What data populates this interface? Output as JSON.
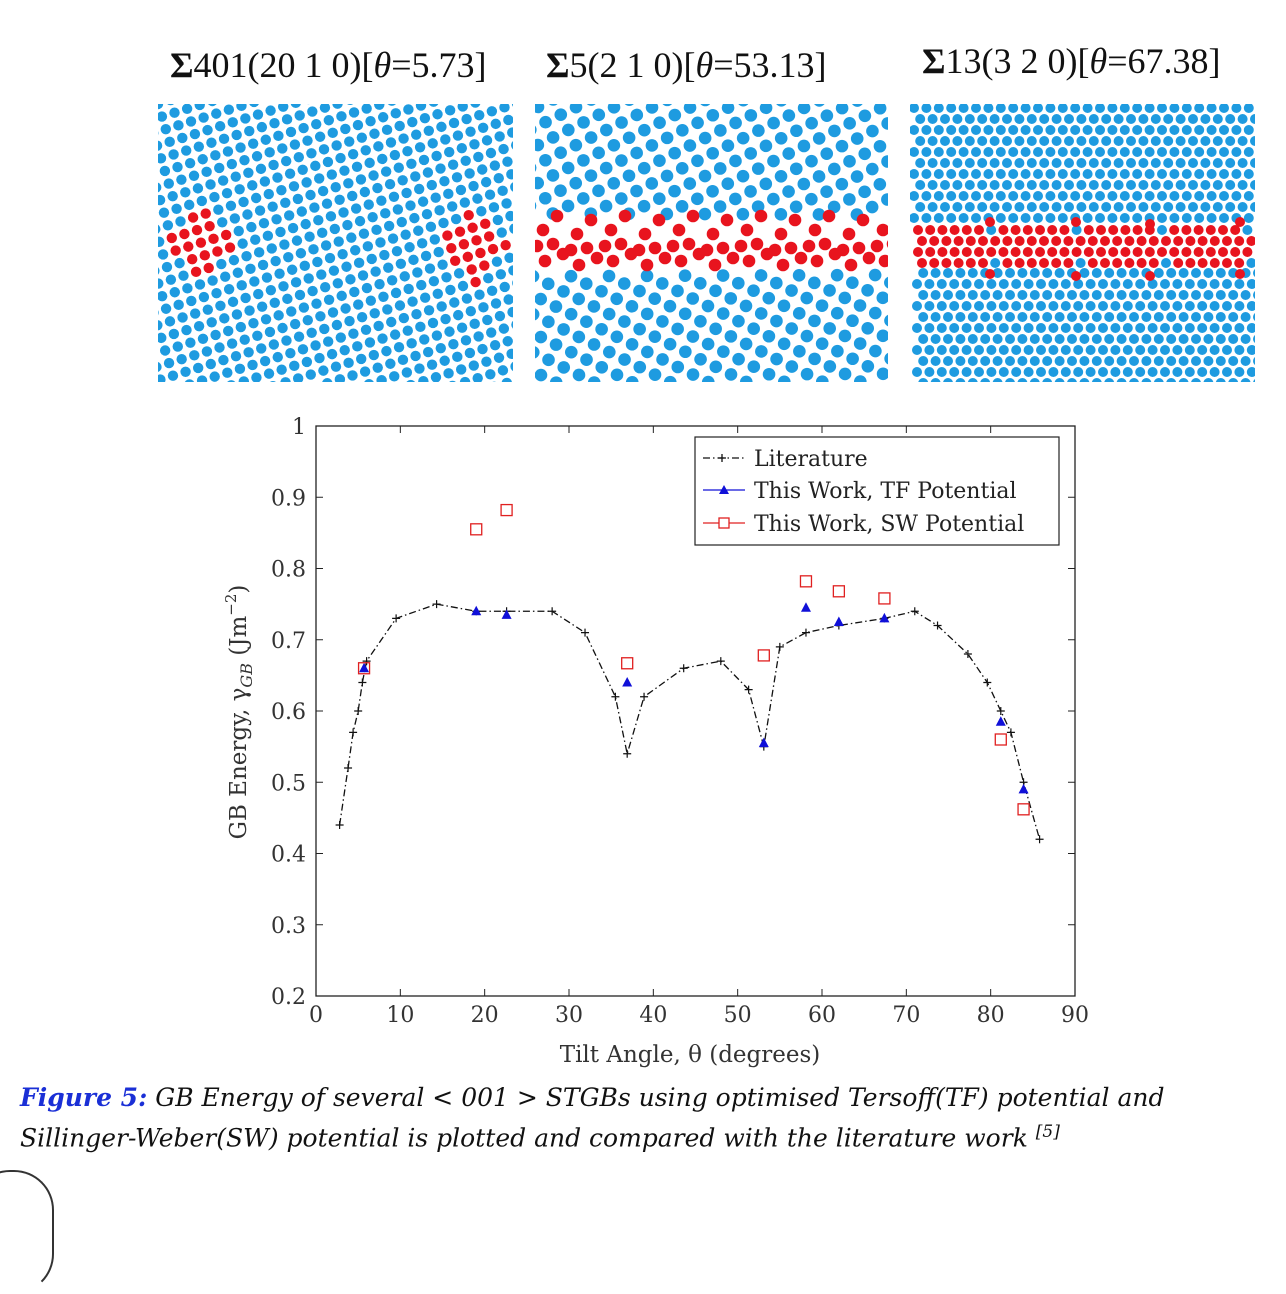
{
  "panels": [
    {
      "title_bold": "Σ",
      "title": "401(20 1 0)[",
      "theta": "θ",
      "value": "=5.73]"
    },
    {
      "title_bold": "Σ",
      "title": "5(2 1 0)[",
      "theta": "θ",
      "value": "=53.13]"
    },
    {
      "title_bold": "Σ",
      "title": "13(3 2 0)[",
      "theta": "θ",
      "value": "=67.38]"
    }
  ],
  "colors": {
    "blue_atom": "#1e9be0",
    "red_atom": "#e8141e",
    "tf": "#1010d8",
    "sw": "#e02020",
    "literature": "#111111"
  },
  "chart_data": {
    "type": "line",
    "xlabel": "Tilt Angle, θ (degrees)",
    "ylabel": "GB Energy, γ",
    "ylabel_sub": "GB",
    "ylabel_unit": " (Jm",
    "ylabel_exp": "−2",
    "ylabel_close": ")",
    "xlim": [
      0,
      90
    ],
    "ylim": [
      0.2,
      1
    ],
    "xticks": [
      "0",
      "10",
      "20",
      "30",
      "40",
      "50",
      "60",
      "70",
      "80",
      "90"
    ],
    "yticks": [
      "0.2",
      "0.3",
      "0.4",
      "0.5",
      "0.6",
      "0.7",
      "0.8",
      "0.9",
      "1"
    ],
    "legend_position": "top-right",
    "series": [
      {
        "name": "Literature",
        "style": "dashdot-plus",
        "x": [
          2.8,
          3.8,
          4.4,
          5.0,
          5.5,
          6.0,
          9.5,
          14.3,
          19.0,
          22.6,
          28.0,
          31.9,
          35.5,
          36.9,
          38.9,
          43.6,
          48.0,
          51.3,
          53.1,
          55.0,
          58.1,
          62.0,
          67.4,
          71.0,
          73.7,
          77.3,
          79.6,
          81.2,
          82.4,
          83.9,
          85.8
        ],
        "y": [
          0.44,
          0.52,
          0.57,
          0.6,
          0.64,
          0.67,
          0.73,
          0.75,
          0.74,
          0.74,
          0.74,
          0.71,
          0.62,
          0.54,
          0.62,
          0.66,
          0.67,
          0.63,
          0.55,
          0.69,
          0.71,
          0.72,
          0.73,
          0.74,
          0.72,
          0.68,
          0.64,
          0.6,
          0.57,
          0.5,
          0.42
        ]
      },
      {
        "name": "This Work, TF Potential",
        "style": "triangle",
        "x": [
          5.7,
          19.0,
          22.6,
          36.9,
          53.1,
          58.1,
          62.0,
          67.4,
          81.2,
          83.9
        ],
        "y": [
          0.66,
          0.74,
          0.735,
          0.64,
          0.555,
          0.745,
          0.725,
          0.73,
          0.585,
          0.49
        ]
      },
      {
        "name": "This Work, SW Potential",
        "style": "square",
        "x": [
          5.7,
          19.0,
          22.6,
          36.9,
          53.1,
          58.1,
          62.0,
          67.4,
          81.2,
          83.9
        ],
        "y": [
          0.66,
          0.855,
          0.882,
          0.667,
          0.678,
          0.782,
          0.768,
          0.758,
          0.56,
          0.462
        ]
      }
    ]
  },
  "caption": {
    "fig_label": "Figure 5:",
    "text": " GB Energy of several < 001 > STGBs using optimised Tersoff(TF) potential and Sillinger-Weber(SW) potential is plotted and compared with the literature work ",
    "ref": "[5]"
  }
}
